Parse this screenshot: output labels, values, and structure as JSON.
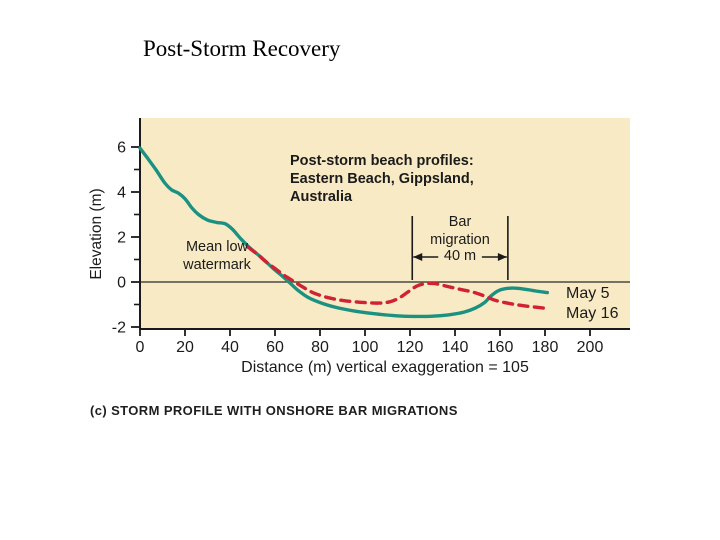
{
  "slide": {
    "title": "Post-Storm Recovery",
    "caption": "(c) STORM PROFILE WITH ONSHORE BAR MIGRATIONS"
  },
  "colors": {
    "panel": "#F8EAC4",
    "teal": "#1B9182",
    "red": "#CF2233",
    "axis": "#1A1A1A",
    "zero_line": "#4A4A40",
    "text": "#1B1B1B"
  },
  "chart": {
    "inner_title_lines": [
      "Post-storm beach profiles:",
      "Eastern Beach, Gippsland,",
      "Australia"
    ]
  },
  "chart_data": {
    "type": "line",
    "title": "Post-storm beach profiles: Eastern Beach, Gippsland, Australia",
    "xlabel": "Distance (m) vertical exaggeration = 105",
    "ylabel": "Elevation (m)",
    "xlim": [
      0,
      218
    ],
    "ylim": [
      -2.1,
      7.3
    ],
    "x_ticks": [
      0,
      20,
      40,
      60,
      80,
      100,
      120,
      140,
      160,
      180,
      200
    ],
    "y_ticks_major": [
      6,
      4,
      2,
      0,
      -2
    ],
    "y_ticks_minor": [
      5,
      3,
      1,
      -1
    ],
    "grid": false,
    "legend_position": "right of line ends",
    "series": [
      {
        "name": "May 5",
        "style": "solid",
        "color_key": "teal",
        "points": [
          [
            0,
            5.95
          ],
          [
            3,
            5.55
          ],
          [
            7,
            5.0
          ],
          [
            11,
            4.4
          ],
          [
            14,
            4.1
          ],
          [
            17,
            3.95
          ],
          [
            20,
            3.7
          ],
          [
            23,
            3.3
          ],
          [
            26,
            3.0
          ],
          [
            30,
            2.75
          ],
          [
            34,
            2.65
          ],
          [
            38,
            2.58
          ],
          [
            41,
            2.35
          ],
          [
            45,
            1.9
          ],
          [
            49,
            1.5
          ],
          [
            54,
            1.08
          ],
          [
            59,
            0.62
          ],
          [
            63,
            0.28
          ],
          [
            66,
            0.02
          ],
          [
            70,
            -0.35
          ],
          [
            75,
            -0.7
          ],
          [
            81,
            -0.95
          ],
          [
            88,
            -1.15
          ],
          [
            96,
            -1.3
          ],
          [
            105,
            -1.42
          ],
          [
            114,
            -1.5
          ],
          [
            122,
            -1.53
          ],
          [
            130,
            -1.52
          ],
          [
            137,
            -1.46
          ],
          [
            144,
            -1.34
          ],
          [
            149,
            -1.16
          ],
          [
            153,
            -0.92
          ],
          [
            156,
            -0.62
          ],
          [
            159,
            -0.4
          ],
          [
            162,
            -0.3
          ],
          [
            166,
            -0.27
          ],
          [
            171,
            -0.32
          ],
          [
            176,
            -0.4
          ],
          [
            181,
            -0.47
          ]
        ]
      },
      {
        "name": "May 16",
        "style": "dashed",
        "color_key": "red",
        "points": [
          [
            48,
            1.55
          ],
          [
            52,
            1.25
          ],
          [
            56,
            0.9
          ],
          [
            60,
            0.6
          ],
          [
            64,
            0.3
          ],
          [
            68,
            0.05
          ],
          [
            72,
            -0.2
          ],
          [
            77,
            -0.48
          ],
          [
            83,
            -0.68
          ],
          [
            90,
            -0.82
          ],
          [
            98,
            -0.9
          ],
          [
            106,
            -0.94
          ],
          [
            111,
            -0.88
          ],
          [
            115,
            -0.72
          ],
          [
            119,
            -0.45
          ],
          [
            123,
            -0.18
          ],
          [
            127,
            -0.07
          ],
          [
            131,
            -0.07
          ],
          [
            136,
            -0.18
          ],
          [
            142,
            -0.32
          ],
          [
            148,
            -0.45
          ],
          [
            153,
            -0.62
          ],
          [
            158,
            -0.82
          ],
          [
            164,
            -0.95
          ],
          [
            170,
            -1.05
          ],
          [
            176,
            -1.12
          ],
          [
            181,
            -1.18
          ]
        ]
      }
    ],
    "annotations": {
      "mean_low_watermark": {
        "lines": [
          "Mean low",
          "watermark"
        ],
        "elevation": 0
      },
      "bar_migration": {
        "lines": [
          "Bar",
          "migration"
        ],
        "distance_label": "40 m",
        "from_m": 121,
        "to_m": 163.5
      }
    }
  }
}
